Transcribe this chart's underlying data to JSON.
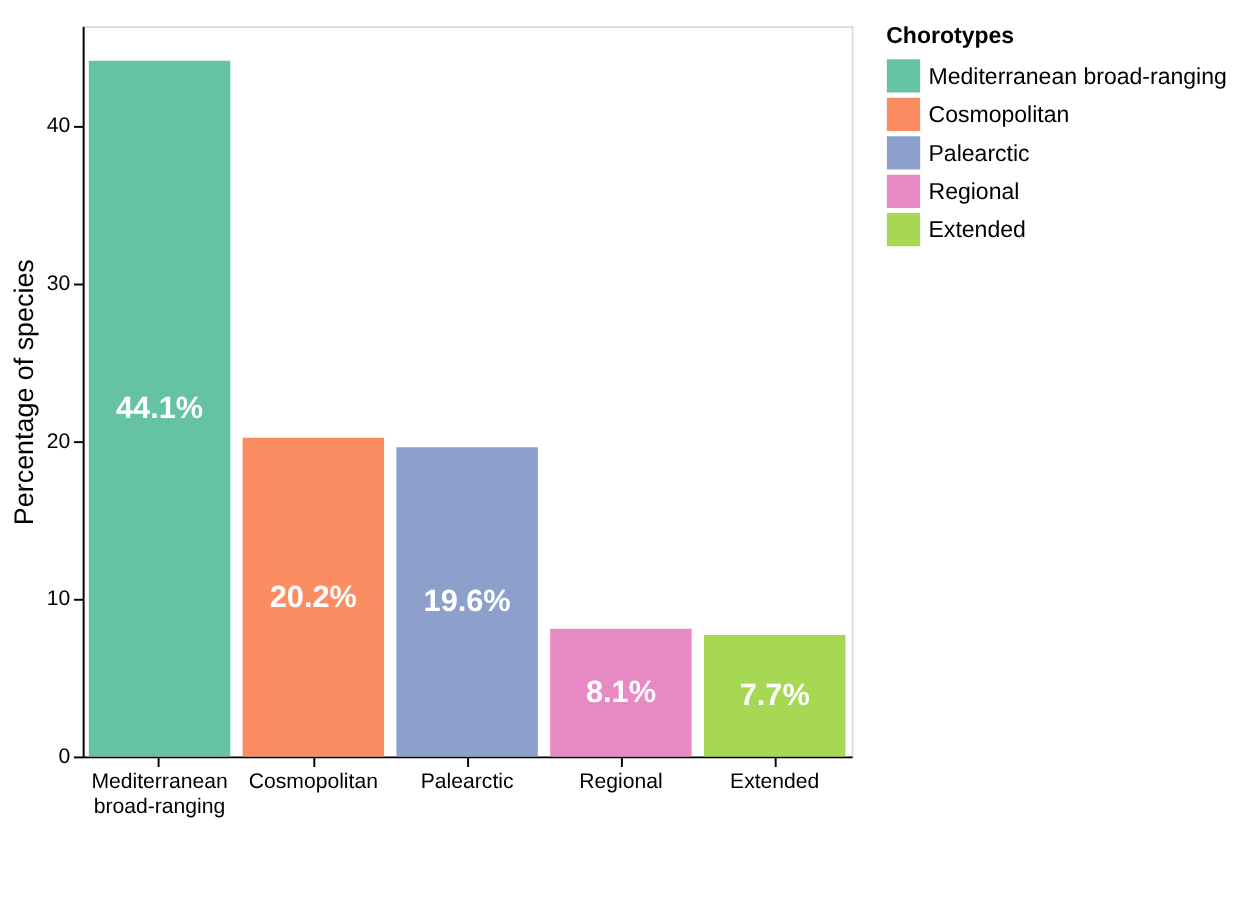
{
  "chart_data": {
    "type": "bar",
    "ylabel": "Percentage of species",
    "legend_title": "Chorotypes",
    "categories": [
      "Mediterranean broad-ranging",
      "Cosmopolitan",
      "Palearctic",
      "Regional",
      "Extended"
    ],
    "series": [
      {
        "name": "Mediterranean broad-ranging",
        "color": "#66c2a5",
        "values": [
          44.1,
          null,
          null,
          null,
          null
        ],
        "value_labels": [
          "44.1%",
          null,
          null,
          null,
          null
        ]
      },
      {
        "name": "Cosmopolitan",
        "color": "#fc8d62",
        "values": [
          null,
          20.2,
          null,
          null,
          null
        ],
        "value_labels": [
          null,
          "20.2%",
          null,
          null,
          null
        ]
      },
      {
        "name": "Palearctic",
        "color": "#8da0cb",
        "values": [
          null,
          null,
          19.6,
          null,
          null
        ],
        "value_labels": [
          null,
          null,
          "19.6%",
          null,
          null
        ]
      },
      {
        "name": "Regional",
        "color": "#e78ac3",
        "values": [
          null,
          null,
          null,
          8.1,
          null
        ],
        "value_labels": [
          null,
          null,
          null,
          "8.1%",
          null
        ]
      },
      {
        "name": "Extended",
        "color": "#a6d854",
        "values": [
          null,
          null,
          null,
          null,
          7.7
        ],
        "value_labels": [
          null,
          null,
          null,
          null,
          "7.7%"
        ]
      }
    ],
    "ylim": [
      0,
      46.3
    ],
    "yticks": [
      0,
      10,
      20,
      30,
      40
    ],
    "grid": false,
    "legend": "right"
  }
}
